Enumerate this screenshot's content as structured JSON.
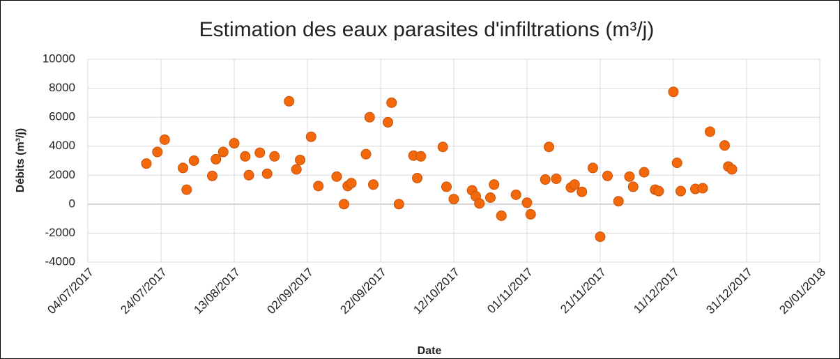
{
  "chart_data": {
    "type": "scatter",
    "title": "Estimation des eaux  parasites d'infiltrations (m³/j)",
    "x_label": "Date",
    "y_label": "Débits (m³/j)",
    "color": "#f4680c",
    "grid": true,
    "xlim": [
      "04/07/2017",
      "20/01/2018"
    ],
    "xticks": [
      "04/07/2017",
      "24/07/2017",
      "13/08/2017",
      "02/09/2017",
      "22/09/2017",
      "12/10/2017",
      "01/11/2017",
      "21/11/2017",
      "11/12/2017",
      "31/12/2017",
      "20/01/2018"
    ],
    "ylim": [
      -4000,
      10000
    ],
    "yticks": [
      -4000,
      -2000,
      0,
      2000,
      4000,
      6000,
      8000,
      10000
    ],
    "x": [
      "20/07/2017",
      "23/07/2017",
      "25/07/2017",
      "30/07/2017",
      "31/07/2017",
      "02/08/2017",
      "07/08/2017",
      "08/08/2017",
      "10/08/2017",
      "13/08/2017",
      "16/08/2017",
      "17/08/2017",
      "20/08/2017",
      "22/08/2017",
      "24/08/2017",
      "28/08/2017",
      "30/08/2017",
      "31/08/2017",
      "03/09/2017",
      "05/09/2017",
      "10/09/2017",
      "12/09/2017",
      "13/09/2017",
      "14/09/2017",
      "18/09/2017",
      "19/09/2017",
      "20/09/2017",
      "24/09/2017",
      "25/09/2017",
      "27/09/2017",
      "01/10/2017",
      "02/10/2017",
      "03/10/2017",
      "09/10/2017",
      "10/10/2017",
      "12/10/2017",
      "17/10/2017",
      "18/10/2017",
      "19/10/2017",
      "22/10/2017",
      "23/10/2017",
      "25/10/2017",
      "29/10/2017",
      "01/11/2017",
      "02/11/2017",
      "06/11/2017",
      "07/11/2017",
      "09/11/2017",
      "13/11/2017",
      "14/11/2017",
      "16/11/2017",
      "19/11/2017",
      "21/11/2017",
      "23/11/2017",
      "26/11/2017",
      "29/11/2017",
      "30/11/2017",
      "03/12/2017",
      "06/12/2017",
      "07/12/2017",
      "11/12/2017",
      "12/12/2017",
      "13/12/2017",
      "17/12/2017",
      "19/12/2017",
      "21/12/2017",
      "25/12/2017",
      "26/12/2017",
      "27/12/2017"
    ],
    "values": [
      2800,
      3600,
      4450,
      2500,
      1000,
      3000,
      1950,
      3100,
      3600,
      4200,
      3300,
      2000,
      3550,
      2100,
      3300,
      7100,
      2400,
      3050,
      4650,
      1250,
      1900,
      0,
      1250,
      1450,
      3450,
      6000,
      1350,
      5650,
      7000,
      0,
      3350,
      1800,
      3300,
      3950,
      1200,
      350,
      950,
      550,
      50,
      450,
      1350,
      -800,
      650,
      100,
      -700,
      1700,
      3950,
      1750,
      1150,
      1350,
      850,
      2500,
      -2250,
      1950,
      200,
      1900,
      1200,
      2200,
      1000,
      900,
      7750,
      2850,
      900,
      1050,
      1100,
      5000,
      4050,
      2600,
      2400
    ]
  }
}
